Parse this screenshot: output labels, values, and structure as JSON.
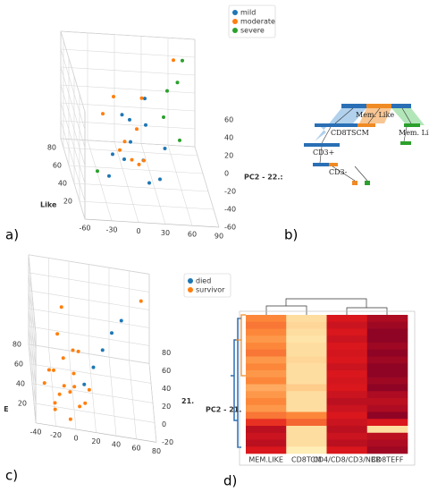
{
  "panels": [
    "a)",
    "b)",
    "c)",
    "d)"
  ],
  "chart_data": [
    {
      "type": "scatter3d",
      "series": [
        {
          "name": "mild",
          "color": "#1f77b4",
          "x": [
            -30,
            -10,
            0,
            10,
            20,
            -20,
            30,
            5,
            15,
            -5,
            25,
            40
          ],
          "y": [
            10,
            20,
            30,
            15,
            40,
            30,
            20,
            50,
            10,
            45,
            60,
            35
          ],
          "z": [
            -20,
            -10,
            0,
            -5,
            10,
            -15,
            -30,
            5,
            -25,
            15,
            20,
            -10
          ]
        },
        {
          "name": "moderate",
          "color": "#ff7f0e",
          "x": [
            -15,
            -5,
            0,
            10,
            -25,
            20,
            5,
            -10,
            60,
            15
          ],
          "y": [
            20,
            35,
            25,
            40,
            50,
            55,
            15,
            60,
            70,
            30
          ],
          "z": [
            0,
            -5,
            -15,
            5,
            10,
            25,
            -10,
            20,
            55,
            -20
          ]
        },
        {
          "name": "severe",
          "color": "#2ca02c",
          "x": [
            50,
            60,
            70,
            40,
            55,
            -40
          ],
          "y": [
            60,
            55,
            70,
            40,
            30,
            20
          ],
          "z": [
            30,
            45,
            55,
            20,
            5,
            -25
          ]
        }
      ],
      "xlim": [
        -60,
        90
      ],
      "xticks": [
        -60,
        -30,
        0,
        30,
        60,
        90
      ],
      "ylim": [
        0,
        90
      ],
      "yticks": [
        20,
        40,
        60,
        80
      ],
      "ylabel": "Like",
      "zlim": [
        -60,
        60
      ],
      "zticks": [
        -60,
        -40,
        -20,
        0,
        20,
        40,
        60
      ],
      "zlabel": "PC2 - 22.:"
    },
    {
      "type": "scatter3d",
      "series": [
        {
          "name": "died",
          "color": "#1f77b4",
          "x": [
            10,
            30,
            40,
            50,
            20
          ],
          "y": [
            20,
            40,
            50,
            55,
            30
          ],
          "z": [
            10,
            30,
            40,
            50,
            20
          ]
        },
        {
          "name": "survivor",
          "color": "#ff7f0e",
          "x": [
            -20,
            -15,
            -10,
            -5,
            0,
            5,
            -25,
            -10,
            10,
            0,
            -5,
            15,
            -30,
            -20,
            5,
            -15,
            70,
            -10,
            -20,
            0
          ],
          "y": [
            10,
            15,
            20,
            10,
            25,
            15,
            20,
            30,
            10,
            35,
            5,
            20,
            15,
            25,
            30,
            40,
            60,
            50,
            8,
            18
          ],
          "z": [
            -5,
            0,
            5,
            10,
            15,
            -10,
            20,
            25,
            0,
            30,
            -15,
            5,
            10,
            15,
            35,
            40,
            70,
            60,
            -10,
            8
          ]
        }
      ],
      "xlim": [
        -40,
        80
      ],
      "xticks": [
        -40,
        -20,
        0,
        20,
        40,
        60,
        80
      ],
      "ylim": [
        0,
        80
      ],
      "yticks": [
        20,
        40,
        60,
        80
      ],
      "ylabel": "E",
      "zlim": [
        -20,
        80
      ],
      "zticks": [
        -20,
        0,
        20,
        40,
        60,
        80
      ],
      "zlabel": "21."
    },
    {
      "type": "heatmap",
      "columns": [
        "MEM.LIKE",
        "CD8TCM",
        "CD4/CD8/CD3/NBR",
        "CD8TEFF"
      ],
      "ylabel": "PC2 - 21.",
      "colormap": [
        "#ffffcc",
        "#fd8d3c",
        "#e31a1c",
        "#800026"
      ],
      "values": [
        [
          0.35,
          0.1,
          0.7,
          0.85
        ],
        [
          0.4,
          0.12,
          0.75,
          0.9
        ],
        [
          0.35,
          0.1,
          0.7,
          0.95
        ],
        [
          0.3,
          0.08,
          0.75,
          0.95
        ],
        [
          0.35,
          0.1,
          0.7,
          0.9
        ],
        [
          0.4,
          0.1,
          0.72,
          0.95
        ],
        [
          0.3,
          0.12,
          0.7,
          0.9
        ],
        [
          0.35,
          0.1,
          0.75,
          0.95
        ],
        [
          0.3,
          0.1,
          0.7,
          0.95
        ],
        [
          0.35,
          0.1,
          0.72,
          0.9
        ],
        [
          0.25,
          0.15,
          0.7,
          0.95
        ],
        [
          0.3,
          0.1,
          0.75,
          0.85
        ],
        [
          0.35,
          0.1,
          0.8,
          0.8
        ],
        [
          0.3,
          0.1,
          0.75,
          0.85
        ],
        [
          0.4,
          0.35,
          0.7,
          0.95
        ],
        [
          0.6,
          0.45,
          0.75,
          0.7
        ],
        [
          0.8,
          0.1,
          0.8,
          0.1
        ],
        [
          0.75,
          0.1,
          0.75,
          0.8
        ],
        [
          0.8,
          0.1,
          0.8,
          0.85
        ],
        [
          0.7,
          0.05,
          0.7,
          0.9
        ]
      ]
    }
  ],
  "diagram": {
    "nodes": [
      "Mem. Like",
      "CD8TSCM",
      "Mem. Lik",
      "CD3+",
      "CD3-"
    ]
  }
}
